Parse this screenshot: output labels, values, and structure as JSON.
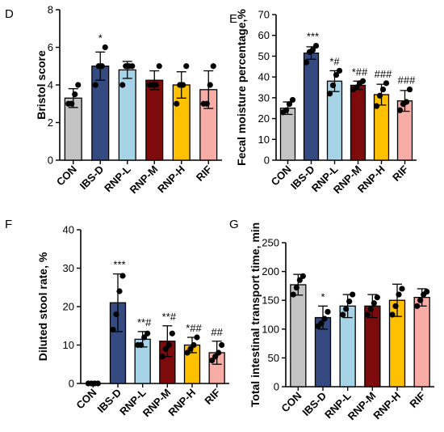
{
  "categories": [
    "CON",
    "IBS-D",
    "RNP-L",
    "RNP-M",
    "RNP-H",
    "RIF"
  ],
  "colors": [
    "#c3c3c3",
    "#344a80",
    "#a6d4e6",
    "#7d0b0b",
    "#ffc000",
    "#f7aca6"
  ],
  "chart_data": [
    {
      "panel": "D",
      "type": "bar",
      "ylabel": "Bristol score",
      "ylim": [
        0,
        8
      ],
      "yticks": [
        0,
        2,
        4,
        6,
        8
      ],
      "values": [
        3.3,
        5.0,
        4.8,
        4.25,
        4.0,
        3.75
      ],
      "sd": [
        0.5,
        0.75,
        0.45,
        0.5,
        0.7,
        1.0
      ],
      "points": [
        [
          3.0,
          3.0,
          3.5,
          4.0
        ],
        [
          4.0,
          5.0,
          5.0,
          6.0
        ],
        [
          4.0,
          5.0,
          5.0,
          5.0
        ],
        [
          4.0,
          4.0,
          4.0,
          5.0
        ],
        [
          3.0,
          4.0,
          4.0,
          5.0
        ],
        [
          3.0,
          3.0,
          4.0,
          5.0
        ]
      ],
      "significance": [
        "",
        "*",
        "",
        "",
        "",
        ""
      ]
    },
    {
      "panel": "E",
      "type": "bar",
      "ylabel": "Fecal moisture percentage,%",
      "ylim": [
        0,
        70
      ],
      "yticks": [
        0,
        10,
        20,
        30,
        40,
        50,
        60,
        70
      ],
      "values": [
        25.0,
        51.5,
        38.0,
        36.0,
        31.5,
        28.5
      ],
      "sd": [
        3.0,
        3.0,
        5.0,
        2.0,
        5.0,
        5.0
      ],
      "points": [
        [
          23,
          24,
          27,
          29
        ],
        [
          47,
          52,
          53,
          55
        ],
        [
          32,
          36,
          41,
          43
        ],
        [
          34,
          35,
          37,
          38
        ],
        [
          26,
          31,
          34,
          37
        ],
        [
          24,
          27,
          28,
          34
        ]
      ],
      "significance": [
        "",
        "***",
        "*#",
        "*##",
        "###",
        "###"
      ]
    },
    {
      "panel": "F",
      "type": "bar",
      "ylabel": "Diluted stool rate, %",
      "ylim": [
        0,
        40
      ],
      "yticks": [
        0,
        10,
        20,
        30,
        40
      ],
      "values": [
        0.0,
        21.0,
        11.5,
        11.0,
        10.0,
        8.0
      ],
      "sd": [
        0.0,
        7.5,
        2.0,
        4.0,
        2.0,
        3.0
      ],
      "points": [
        [
          0,
          0,
          0,
          0
        ],
        [
          14,
          18,
          24,
          28
        ],
        [
          10,
          10,
          12,
          13
        ],
        [
          7,
          9,
          10,
          13
        ],
        [
          8,
          9,
          10,
          12
        ],
        [
          6,
          7,
          8,
          10
        ]
      ],
      "significance": [
        "",
        "***",
        "**#",
        "**#",
        "*##",
        "##"
      ]
    },
    {
      "panel": "G",
      "type": "bar",
      "ylabel": "Total intestinal transport time, min",
      "ylim": [
        0,
        250
      ],
      "yticks": [
        0,
        50,
        100,
        150,
        200,
        250
      ],
      "values": [
        177,
        120,
        140,
        140,
        150,
        155
      ],
      "sd": [
        18,
        20,
        20,
        20,
        28,
        15
      ],
      "points": [
        [
          160,
          172,
          185,
          192
        ],
        [
          105,
          110,
          118,
          130
        ],
        [
          125,
          135,
          148,
          160
        ],
        [
          125,
          135,
          145,
          155
        ],
        [
          125,
          140,
          160,
          170
        ],
        [
          140,
          150,
          160,
          165
        ]
      ],
      "significance": [
        "",
        "*",
        "",
        "",
        "",
        ""
      ]
    }
  ]
}
